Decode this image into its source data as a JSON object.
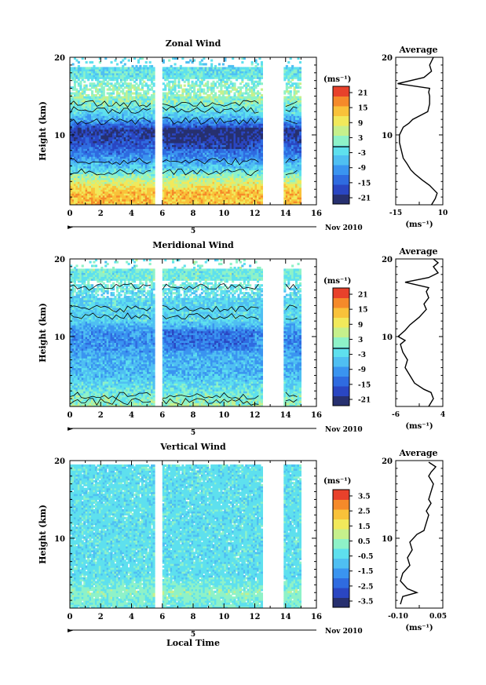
{
  "page": {
    "xlabel": "Local Time",
    "date_label": "Nov 2010"
  },
  "panels": [
    {
      "id": "zonal",
      "title": "Zonal Wind",
      "ylabel": "Height (km)",
      "ylim": [
        1,
        20
      ],
      "yticks": [
        20,
        10
      ],
      "xlim": [
        0,
        16
      ],
      "xticks": [
        0,
        2,
        4,
        6,
        8,
        10,
        12,
        14,
        16
      ],
      "day_marker": "5",
      "colorbar": {
        "unit": "(ms⁻¹)",
        "ticks": [
          "21",
          "15",
          "9",
          "3",
          "-3",
          "-9",
          "-15",
          "-21"
        ],
        "contour_level": "0"
      },
      "average": {
        "title": "Average",
        "xlabel": "(ms⁻¹)",
        "xlim": [
          -15,
          10
        ],
        "xticks": [
          "-15",
          "10"
        ],
        "yticks": [
          20,
          10
        ]
      }
    },
    {
      "id": "meridional",
      "title": "Meridional Wind",
      "ylabel": "Height (km)",
      "ylim": [
        1,
        20
      ],
      "yticks": [
        20,
        10
      ],
      "xlim": [
        0,
        16
      ],
      "xticks": [
        0,
        2,
        4,
        6,
        8,
        10,
        12,
        14,
        16
      ],
      "day_marker": "5",
      "colorbar": {
        "unit": "(ms⁻¹)",
        "ticks": [
          "21",
          "15",
          "9",
          "3",
          "-3",
          "-9",
          "-15",
          "-21"
        ],
        "contour_level": "0"
      },
      "average": {
        "title": "Average",
        "xlabel": "(ms⁻¹)",
        "xlim": [
          -6,
          4
        ],
        "xticks": [
          "-6",
          "4"
        ],
        "yticks": [
          20,
          10
        ]
      }
    },
    {
      "id": "vertical",
      "title": "Vertical Wind",
      "ylabel": "Height (km)",
      "ylim": [
        1,
        20
      ],
      "yticks": [
        20,
        10
      ],
      "xlim": [
        0,
        16
      ],
      "xticks": [
        0,
        2,
        4,
        6,
        8,
        10,
        12,
        14,
        16
      ],
      "day_marker": "5",
      "colorbar": {
        "unit": "(ms⁻¹)",
        "ticks": [
          "3.5",
          "2.5",
          "1.5",
          "0.5",
          "-0.5",
          "-1.5",
          "-2.5",
          "-3.5"
        ]
      },
      "average": {
        "title": "Average",
        "xlabel": "(ms⁻¹)",
        "xlim": [
          -0.15,
          0.05
        ],
        "xticks": [
          "-0.10",
          "0.05"
        ],
        "yticks": [
          20,
          10
        ]
      }
    }
  ],
  "chart_data": [
    {
      "type": "heatmap",
      "title": "Zonal Wind",
      "xlabel": "",
      "ylabel": "Height (km)",
      "xlim": [
        0,
        16
      ],
      "ylim": [
        1,
        20
      ],
      "data_gaps_hours": [
        [
          5.5,
          6.0
        ],
        [
          12.5,
          13.8
        ],
        [
          14.9,
          16
        ]
      ],
      "colorscale_ms": [
        -21,
        21
      ],
      "height_profile_ms": [
        {
          "h": 1,
          "v": 12
        },
        {
          "h": 2.5,
          "v": 12
        },
        {
          "h": 4,
          "v": 6
        },
        {
          "h": 5.5,
          "v": -3
        },
        {
          "h": 7,
          "v": -9
        },
        {
          "h": 9,
          "v": -15
        },
        {
          "h": 10.5,
          "v": -18
        },
        {
          "h": 12,
          "v": -6
        },
        {
          "h": 13.5,
          "v": 0
        },
        {
          "h": 15,
          "v": 3
        },
        {
          "h": 17,
          "v": 0
        },
        {
          "h": 19,
          "v": -3
        }
      ]
    },
    {
      "type": "line",
      "title": "Average",
      "xlabel": "(ms⁻¹)",
      "ylabel": "",
      "xlim": [
        -15,
        10
      ],
      "ylim": [
        1,
        20
      ],
      "x": [
        4,
        6,
        7,
        5,
        3,
        -1,
        -5,
        -7,
        -9,
        -11,
        -12,
        -13,
        -13,
        -11,
        -8,
        -6,
        2,
        3,
        3,
        2.5,
        3,
        -14,
        0,
        4,
        3,
        5
      ],
      "y": [
        1.0,
        1.8,
        2.5,
        3.0,
        3.5,
        4.2,
        5.0,
        5.5,
        6.3,
        7.0,
        8.0,
        9.0,
        10.0,
        11.0,
        11.5,
        12.0,
        13.0,
        14.0,
        15.0,
        15.5,
        16.0,
        16.6,
        17.4,
        18.2,
        19.0,
        20.0
      ]
    },
    {
      "type": "heatmap",
      "title": "Meridional Wind",
      "xlabel": "",
      "ylabel": "Height (km)",
      "xlim": [
        0,
        16
      ],
      "ylim": [
        1,
        20
      ],
      "data_gaps_hours": [
        [
          5.5,
          6.0
        ],
        [
          12.5,
          13.8
        ],
        [
          14.9,
          16
        ]
      ],
      "colorscale_ms": [
        -21,
        21
      ],
      "height_profile_ms": [
        {
          "h": 1,
          "v": 3
        },
        {
          "h": 2.5,
          "v": 0
        },
        {
          "h": 4,
          "v": -3
        },
        {
          "h": 5.5,
          "v": -6
        },
        {
          "h": 7,
          "v": -6
        },
        {
          "h": 9,
          "v": -9
        },
        {
          "h": 10.5,
          "v": -9
        },
        {
          "h": 12,
          "v": -3
        },
        {
          "h": 13.5,
          "v": -3
        },
        {
          "h": 15,
          "v": -3
        },
        {
          "h": 17,
          "v": 0
        },
        {
          "h": 19,
          "v": 0
        }
      ]
    },
    {
      "type": "line",
      "title": "Average",
      "xlabel": "(ms⁻¹)",
      "ylabel": "",
      "xlim": [
        -6,
        4
      ],
      "ylim": [
        1,
        20
      ],
      "x": [
        1,
        2,
        1.5,
        0,
        -2,
        -3,
        -4,
        -3.5,
        -4.5,
        -5,
        -4,
        -5.5,
        -4,
        -3,
        -1,
        0.5,
        0,
        1,
        0.5,
        1,
        -4,
        1,
        3,
        2,
        3,
        2
      ],
      "y": [
        1.0,
        2.0,
        2.8,
        3.2,
        4.0,
        5.0,
        6.0,
        7.0,
        8.0,
        9.0,
        9.5,
        10.0,
        10.8,
        11.5,
        12.5,
        13.5,
        14.2,
        15.0,
        15.8,
        16.3,
        17.0,
        17.6,
        18.2,
        19.0,
        19.5,
        20.0
      ]
    },
    {
      "type": "heatmap",
      "title": "Vertical Wind",
      "xlabel": "Local Time",
      "ylabel": "Height (km)",
      "xlim": [
        0,
        16
      ],
      "ylim": [
        1,
        20
      ],
      "data_gaps_hours": [
        [
          5.5,
          6.0
        ],
        [
          12.5,
          13.8
        ],
        [
          14.9,
          16
        ]
      ],
      "colorscale_ms": [
        -3.5,
        3.5
      ],
      "height_profile_ms": [
        {
          "h": 1,
          "v": 0
        },
        {
          "h": 3,
          "v": 0.3
        },
        {
          "h": 5,
          "v": -0.3
        },
        {
          "h": 7,
          "v": -0.3
        },
        {
          "h": 9,
          "v": -0.3
        },
        {
          "h": 11,
          "v": -0.3
        },
        {
          "h": 13,
          "v": -0.3
        },
        {
          "h": 15,
          "v": -0.3
        },
        {
          "h": 17,
          "v": -0.3
        },
        {
          "h": 19,
          "v": -0.3
        }
      ]
    },
    {
      "type": "line",
      "title": "Average",
      "xlabel": "(ms⁻¹)",
      "ylabel": "",
      "xlim": [
        -0.15,
        0.05
      ],
      "ylim": [
        1,
        20
      ],
      "x": [
        -0.13,
        -0.12,
        -0.06,
        -0.1,
        -0.13,
        -0.12,
        -0.09,
        -0.1,
        -0.08,
        -0.09,
        -0.06,
        -0.03,
        -0.02,
        -0.01,
        -0.02,
        0.0,
        -0.01,
        0.0,
        0.01,
        -0.01,
        0.0,
        0.02,
        -0.01
      ],
      "y": [
        1.5,
        2.5,
        3.0,
        3.5,
        4.5,
        5.5,
        6.5,
        7.5,
        8.5,
        9.5,
        10.5,
        11.0,
        12.0,
        13.0,
        13.5,
        14.5,
        15.0,
        16.0,
        17.0,
        18.0,
        18.5,
        19.2,
        19.8
      ]
    }
  ],
  "colors": {
    "colormap": [
      "#27306f",
      "#2a46c2",
      "#2f6be0",
      "#3a94f0",
      "#4fbff2",
      "#5ee0ee",
      "#8ef2c8",
      "#c6f08c",
      "#f1e95b",
      "#f9c23a",
      "#f58a2a",
      "#e8412b"
    ]
  }
}
